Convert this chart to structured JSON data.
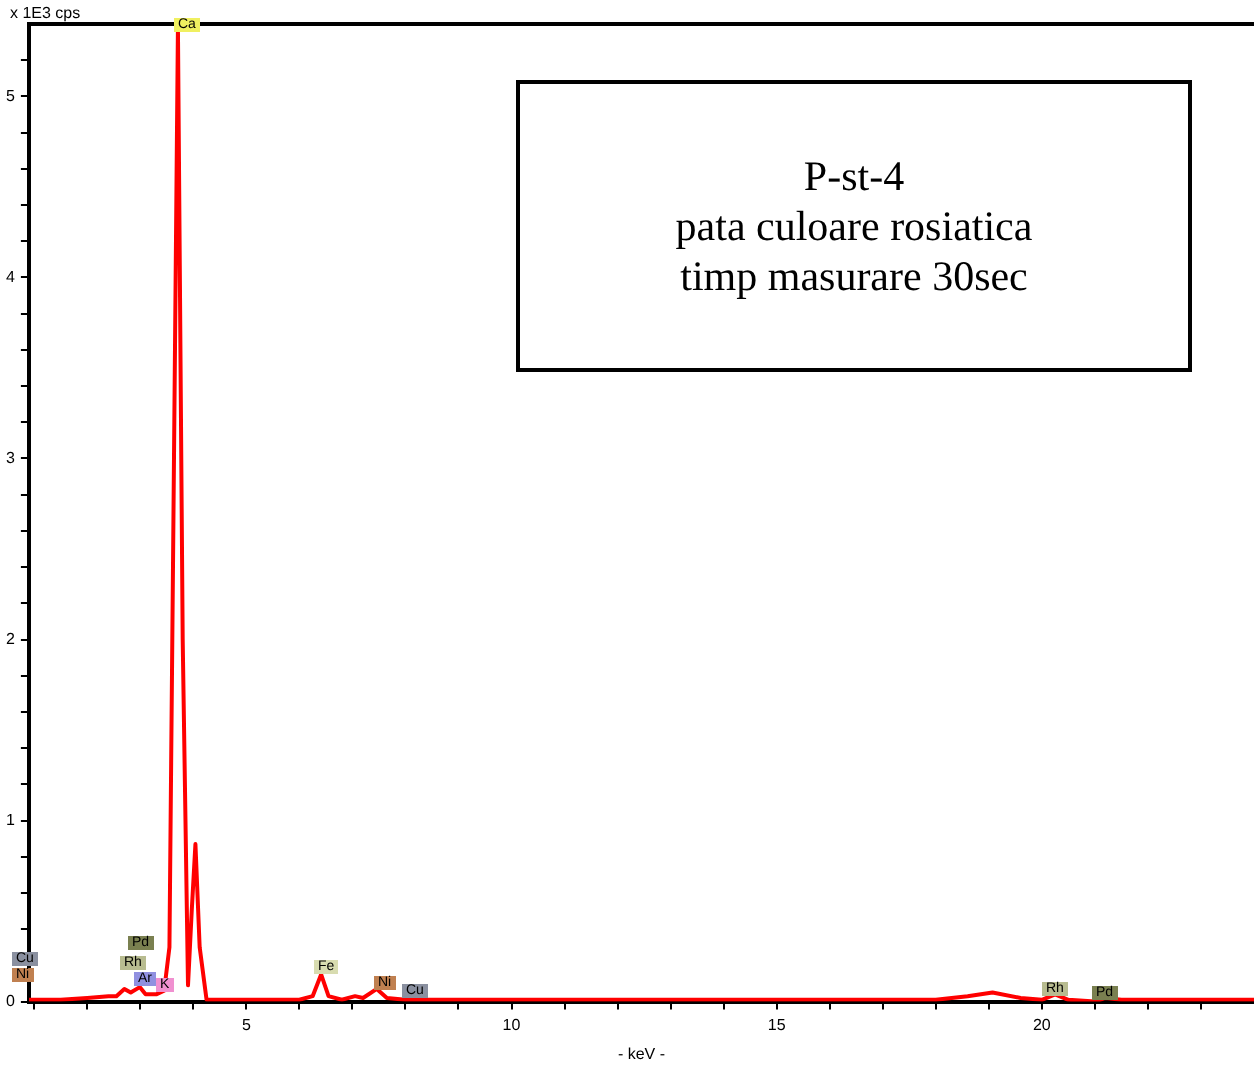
{
  "chart_data": {
    "type": "line",
    "xlabel": "- keV -",
    "ylabel": "x 1E3 cps",
    "x": [
      0.9,
      1.5,
      2.0,
      2.4,
      2.55,
      2.7,
      2.82,
      2.99,
      3.1,
      3.3,
      3.45,
      3.55,
      3.62,
      3.71,
      3.8,
      3.9,
      3.97,
      4.04,
      4.12,
      4.25,
      5.0,
      6.0,
      6.25,
      6.41,
      6.55,
      6.8,
      7.05,
      7.2,
      7.46,
      7.65,
      8.0,
      10,
      15,
      18,
      18.6,
      19.07,
      19.6,
      20.0,
      20.25,
      20.5,
      21.0,
      21.2,
      21.5,
      24
    ],
    "series": [
      {
        "color": "#ff0000",
        "values": [
          0.01,
          0.01,
          0.02,
          0.03,
          0.03,
          0.07,
          0.05,
          0.08,
          0.04,
          0.04,
          0.06,
          0.3,
          2.5,
          5.38,
          2.0,
          0.09,
          0.5,
          0.87,
          0.3,
          0.01,
          0.01,
          0.01,
          0.03,
          0.15,
          0.03,
          0.01,
          0.03,
          0.02,
          0.07,
          0.02,
          0.01,
          0.01,
          0.01,
          0.01,
          0.03,
          0.05,
          0.02,
          0.01,
          0.04,
          0.01,
          0.0,
          0.02,
          0.01,
          0.01
        ]
      }
    ],
    "xlim": [
      0.9,
      24
    ],
    "ylim": [
      0,
      5.4
    ],
    "xticks": [
      {
        "value": 1,
        "label": null
      },
      {
        "value": 2,
        "label": null
      },
      {
        "value": 3,
        "label": null
      },
      {
        "value": 4,
        "label": null
      },
      5,
      {
        "value": 6,
        "label": null
      },
      {
        "value": 7,
        "label": null
      },
      {
        "value": 8,
        "label": null
      },
      {
        "value": 9,
        "label": null
      },
      10,
      {
        "value": 11,
        "label": null
      },
      {
        "value": 12,
        "label": null
      },
      {
        "value": 13,
        "label": null
      },
      {
        "value": 14,
        "label": null
      },
      15,
      {
        "value": 16,
        "label": null
      },
      {
        "value": 17,
        "label": null
      },
      {
        "value": 18,
        "label": null
      },
      {
        "value": 19,
        "label": null
      },
      20,
      {
        "value": 21,
        "label": null
      },
      {
        "value": 22,
        "label": null
      },
      {
        "value": 23,
        "label": null
      }
    ],
    "yticks": [
      0,
      {
        "value": 0.2,
        "label": null
      },
      {
        "value": 0.4,
        "label": null
      },
      {
        "value": 0.6,
        "label": null
      },
      {
        "value": 0.8,
        "label": null
      },
      1,
      {
        "value": 1.2,
        "label": null
      },
      {
        "value": 1.4,
        "label": null
      },
      {
        "value": 1.6,
        "label": null
      },
      {
        "value": 1.8,
        "label": null
      },
      2,
      {
        "value": 2.2,
        "label": null
      },
      {
        "value": 2.4,
        "label": null
      },
      {
        "value": 2.6,
        "label": null
      },
      {
        "value": 2.8,
        "label": null
      },
      3,
      {
        "value": 3.2,
        "label": null
      },
      {
        "value": 3.4,
        "label": null
      },
      {
        "value": 3.6,
        "label": null
      },
      {
        "value": 3.8,
        "label": null
      },
      4,
      {
        "value": 4.2,
        "label": null
      },
      {
        "value": 4.4,
        "label": null
      },
      {
        "value": 4.6,
        "label": null
      },
      {
        "value": 4.8,
        "label": null
      },
      5,
      {
        "value": 5.2,
        "label": null
      }
    ],
    "grid": false,
    "legend": false,
    "marker": "none",
    "line_style": "solid",
    "annotations": [
      "Ca",
      "Pd",
      "Rh",
      "Ar",
      "K",
      "Fe",
      "Ni",
      "Cu",
      "Cu",
      "Ni",
      "Rh",
      "Pd",
      "P-st-4\npata culoare rosiatica\ntimp masurare 30sec"
    ]
  }
}
